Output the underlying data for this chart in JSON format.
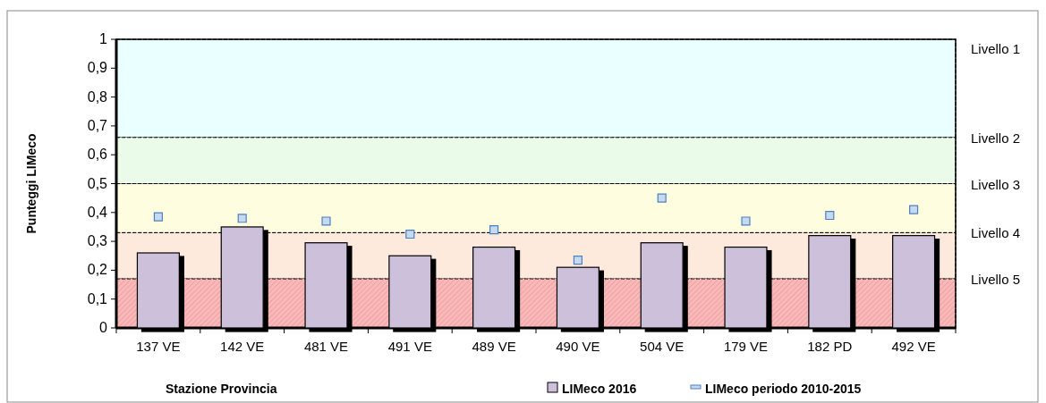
{
  "chart_data": {
    "type": "bar",
    "xlabel": "Stazione  Provincia",
    "ylabel": "Punteggi LIMeco",
    "categories": [
      "137 VE",
      "142 VE",
      "481 VE",
      "491 VE",
      "489 VE",
      "490 VE",
      "504 VE",
      "179 VE",
      "182 PD",
      "492 VE"
    ],
    "series": [
      {
        "name": "LIMeco 2016",
        "type": "bar",
        "color": "#ccc0da",
        "values": [
          0.26,
          0.35,
          0.295,
          0.25,
          0.28,
          0.21,
          0.295,
          0.28,
          0.32,
          0.32
        ]
      },
      {
        "name": "LIMeco periodo  2010-2015",
        "type": "scatter",
        "marker": "square",
        "color": "#c5d9f1",
        "x": [
          "137 VE",
          "142 VE",
          "481 VE",
          "491 VE",
          "489 VE",
          "490 VE",
          "504 VE",
          "179 VE",
          "182 PD",
          "492 VE"
        ],
        "values": [
          0.385,
          0.38,
          0.37,
          0.325,
          0.34,
          0.235,
          0.45,
          0.37,
          0.39,
          0.41
        ]
      }
    ],
    "ylim": [
      0,
      1
    ],
    "yticks": [
      {
        "value": 0,
        "label": "0"
      },
      {
        "value": 0.1,
        "label": "0,1"
      },
      {
        "value": 0.2,
        "label": "0,2"
      },
      {
        "value": 0.3,
        "label": "0,3"
      },
      {
        "value": 0.4,
        "label": "0,4"
      },
      {
        "value": 0.5,
        "label": "0,5"
      },
      {
        "value": 0.6,
        "label": "0,6"
      },
      {
        "value": 0.7,
        "label": "0,7"
      },
      {
        "value": 0.8,
        "label": "0,8"
      },
      {
        "value": 0.9,
        "label": "0,9"
      },
      {
        "value": 1,
        "label": "1"
      }
    ],
    "bands": [
      {
        "axis": "y",
        "from": 0.66,
        "to": 1,
        "label": "Livello 1",
        "color": "#eaffff"
      },
      {
        "axis": "y",
        "from": 0.5,
        "to": 0.66,
        "label": "Livello 2",
        "color": "#eafbea"
      },
      {
        "axis": "y",
        "from": 0.33,
        "to": 0.5,
        "label": "Livello 3",
        "color": "#fffde0"
      },
      {
        "axis": "y",
        "from": 0.17,
        "to": 0.33,
        "label": "Livello 4",
        "color": "#fdeadd"
      },
      {
        "axis": "y",
        "from": 0,
        "to": 0.17,
        "label": "Livello 5",
        "color": "#f7b9b9"
      }
    ],
    "grid": false,
    "legend": "bottom right"
  }
}
